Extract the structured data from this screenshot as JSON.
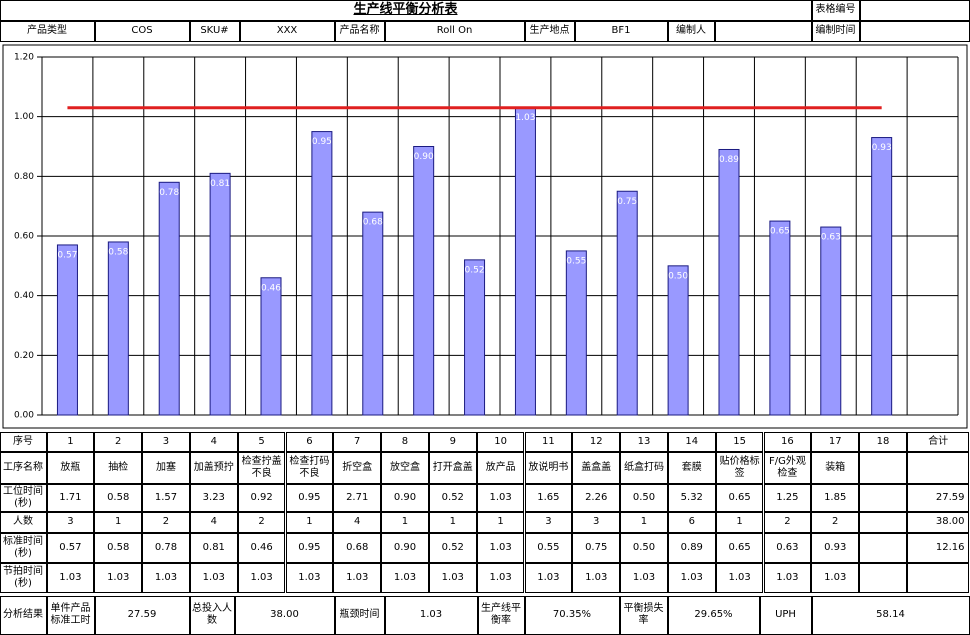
{
  "header": {
    "title": "生产线平衡分析表",
    "form_no_label": "表格编号",
    "fields": [
      {
        "label": "产品类型",
        "value": "COS"
      },
      {
        "label": "SKU#",
        "value": "XXX"
      },
      {
        "label": "产品名称",
        "value": "Roll On"
      },
      {
        "label": "生产地点",
        "value": "BF1"
      },
      {
        "label": "编制人",
        "value": null
      },
      {
        "label": "编制时间",
        "value": null
      }
    ]
  },
  "chart_data": {
    "type": "bar",
    "ylim": [
      0,
      1.2
    ],
    "yticks": [
      {
        "value": 0,
        "label": "0.00"
      },
      {
        "value": 0.2,
        "label": "0.20"
      },
      {
        "value": 0.4,
        "label": "0.40"
      },
      {
        "value": 0.6,
        "label": "0.60"
      },
      {
        "value": 0.8,
        "label": "0.80"
      },
      {
        "value": 1,
        "label": "1.00"
      },
      {
        "value": 1.2,
        "label": "1.20"
      }
    ],
    "grid": true,
    "series": [
      {
        "type": "bar",
        "color": "#9999ff",
        "values": [
          0.57,
          0.58,
          0.78,
          0.81,
          0.46,
          0.95,
          0.68,
          0.9,
          0.52,
          1.03,
          0.55,
          0.75,
          0.5,
          0.89,
          0.65,
          0.63,
          0.93,
          null
        ],
        "value_labels": [
          "0.57",
          "0.58",
          "0.78",
          "0.81",
          "0.46",
          "0.95",
          "0.68",
          "0.90",
          "0.52",
          "1.03",
          "0.55",
          "0.75",
          "0.50",
          "0.89",
          "0.65",
          "0.63",
          "0.93",
          null
        ]
      },
      {
        "type": "line",
        "color": "#e02020",
        "values": [
          1.03,
          1.03,
          1.03,
          1.03,
          1.03,
          1.03,
          1.03,
          1.03,
          1.03,
          1.03,
          1.03,
          1.03,
          1.03,
          1.03,
          1.03,
          1.03,
          1.03,
          null
        ]
      }
    ]
  },
  "table": {
    "total_label": "合计",
    "rows": [
      {
        "label": "序号",
        "cells": [
          "1",
          "2",
          "3",
          "4",
          "5",
          "6",
          "7",
          "8",
          "9",
          "10",
          "11",
          "12",
          "13",
          "14",
          "15",
          "16",
          "17",
          "18"
        ],
        "total": null
      },
      {
        "label": "工序名称",
        "cells": [
          "放瓶",
          "抽检",
          "加塞",
          "加盖预拧",
          "检查拧盖不良",
          "检查打码不良",
          "折空盒",
          "放空盒",
          "打开盒盖",
          "放产品",
          "放说明书",
          "盖盒盖",
          "纸盒打码",
          "套膜",
          "贴价格标签",
          "F/G外观检查",
          "装箱",
          null
        ],
        "total": null
      },
      {
        "label": "工位时间(秒)",
        "cells": [
          "1.71",
          "0.58",
          "1.57",
          "3.23",
          "0.92",
          "0.95",
          "2.71",
          "0.90",
          "0.52",
          "1.03",
          "1.65",
          "2.26",
          "0.50",
          "5.32",
          "0.65",
          "1.25",
          "1.85",
          null
        ],
        "total": "27.59"
      },
      {
        "label": "人数",
        "cells": [
          "3",
          "1",
          "2",
          "4",
          "2",
          "1",
          "4",
          "1",
          "1",
          "1",
          "3",
          "3",
          "1",
          "6",
          "1",
          "2",
          "2",
          null
        ],
        "total": "38.00"
      },
      {
        "label": "标准时间(秒)",
        "cells": [
          "0.57",
          "0.58",
          "0.78",
          "0.81",
          "0.46",
          "0.95",
          "0.68",
          "0.90",
          "0.52",
          "1.03",
          "0.55",
          "0.75",
          "0.50",
          "0.89",
          "0.65",
          "0.63",
          "0.93",
          null
        ],
        "total": "12.16"
      },
      {
        "label": "节拍时间(秒)",
        "cells": [
          "1.03",
          "1.03",
          "1.03",
          "1.03",
          "1.03",
          "1.03",
          "1.03",
          "1.03",
          "1.03",
          "1.03",
          "1.03",
          "1.03",
          "1.03",
          "1.03",
          "1.03",
          "1.03",
          "1.03",
          null
        ],
        "total": null
      }
    ]
  },
  "analysis": {
    "label": "分析结果",
    "items": [
      {
        "label": "单件产品标准工时",
        "value": "27.59"
      },
      {
        "label": "总投入人数",
        "value": "38.00"
      },
      {
        "label": "瓶颈时间",
        "value": "1.03"
      },
      {
        "label": "生产线平衡率",
        "value": "70.35%"
      },
      {
        "label": "平衡损失率",
        "value": "29.65%"
      },
      {
        "label": "UPH",
        "value": "58.14"
      }
    ]
  }
}
